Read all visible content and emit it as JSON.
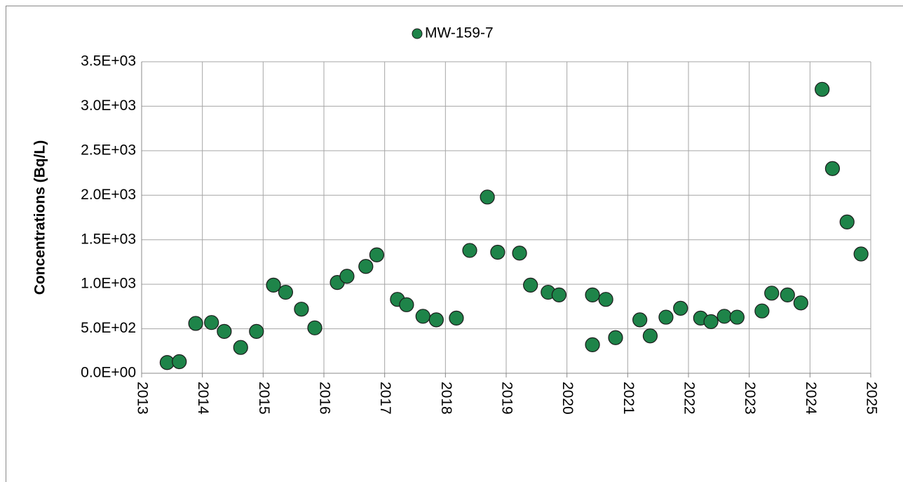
{
  "chart_data": {
    "type": "scatter",
    "legend": "top",
    "grid": true,
    "ylabel": "Concentrations (Bq/L)",
    "series": [
      {
        "name": "MW-159-7",
        "color": "#1e8449",
        "x": [
          2013.42,
          2013.62,
          2013.89,
          2014.15,
          2014.36,
          2014.63,
          2014.89,
          2015.17,
          2015.37,
          2015.63,
          2015.85,
          2016.22,
          2016.38,
          2016.69,
          2016.87,
          2017.21,
          2017.36,
          2017.63,
          2017.85,
          2018.18,
          2018.4,
          2018.69,
          2018.86,
          2019.22,
          2019.4,
          2019.69,
          2019.87,
          2020.42,
          2020.42,
          2020.64,
          2020.8,
          2021.2,
          2021.37,
          2021.63,
          2021.87,
          2022.2,
          2022.37,
          2022.59,
          2022.8,
          2023.21,
          2023.37,
          2023.63,
          2023.85,
          2024.2,
          2024.37,
          2024.61,
          2024.84
        ],
        "values": [
          120,
          130,
          560,
          570,
          470,
          290,
          470,
          990,
          910,
          720,
          510,
          1020,
          1090,
          1200,
          1330,
          830,
          770,
          640,
          600,
          620,
          1380,
          1980,
          1360,
          1350,
          990,
          910,
          880,
          880,
          320,
          830,
          400,
          600,
          420,
          630,
          730,
          620,
          580,
          640,
          630,
          700,
          900,
          880,
          790,
          3190,
          2300,
          1700,
          1340
        ]
      }
    ],
    "xlim": [
      2013,
      2025
    ],
    "xticks": [
      2013,
      2014,
      2015,
      2016,
      2017,
      2018,
      2019,
      2020,
      2021,
      2022,
      2023,
      2024,
      2025
    ],
    "ylim": [
      0,
      3500
    ],
    "yticks": [
      {
        "value": 0,
        "label": "0.0E+00"
      },
      {
        "value": 500,
        "label": "5.0E+02"
      },
      {
        "value": 1000,
        "label": "1.0E+03"
      },
      {
        "value": 1500,
        "label": "1.5E+03"
      },
      {
        "value": 2000,
        "label": "2.0E+03"
      },
      {
        "value": 2500,
        "label": "2.5E+03"
      },
      {
        "value": 3000,
        "label": "3.0E+03"
      },
      {
        "value": 3500,
        "label": "3.5E+03"
      }
    ]
  }
}
